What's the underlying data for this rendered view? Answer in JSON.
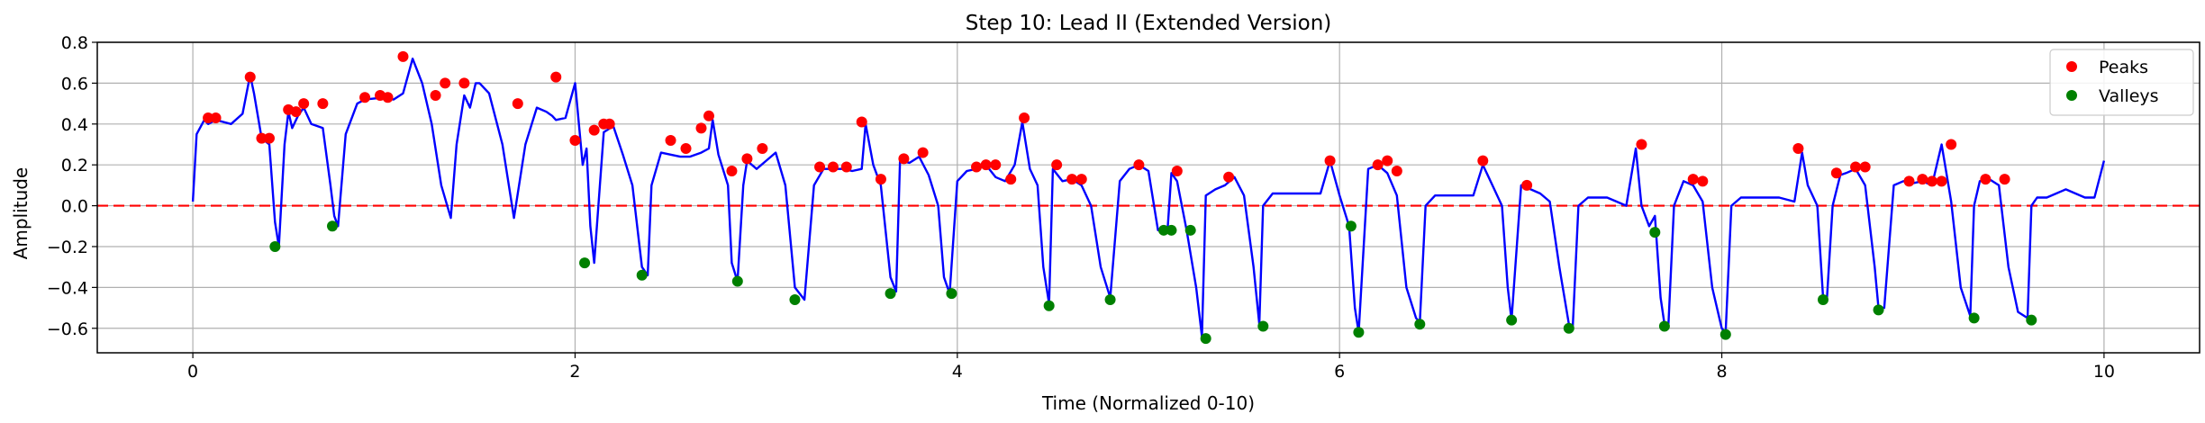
{
  "chart_data": {
    "type": "line",
    "title": "Step 10: Lead II (Extended Version)",
    "xlabel": "Time (Normalized 0-10)",
    "ylabel": "Amplitude",
    "xlim": [
      -0.5,
      10.5
    ],
    "ylim": [
      -0.72,
      0.8
    ],
    "xticks": [
      0,
      2,
      4,
      6,
      8,
      10
    ],
    "xtick_labels": [
      "0",
      "2",
      "4",
      "6",
      "8",
      "10"
    ],
    "yticks": [
      -0.6,
      -0.4,
      -0.2,
      0.0,
      0.2,
      0.4,
      0.6,
      0.8
    ],
    "ytick_labels": [
      "−0.6",
      "−0.4",
      "−0.2",
      "0.0",
      "0.2",
      "0.4",
      "0.6",
      "0.8"
    ],
    "grid": true,
    "legend_position": "top-right",
    "reference_line": {
      "y": 0.0,
      "color": "#ff0000",
      "style": "dashed"
    },
    "signal": {
      "color": "#0000ff",
      "x": [
        0.0,
        0.02,
        0.06,
        0.08,
        0.12,
        0.2,
        0.26,
        0.3,
        0.32,
        0.36,
        0.4,
        0.43,
        0.45,
        0.48,
        0.5,
        0.52,
        0.55,
        0.58,
        0.62,
        0.68,
        0.72,
        0.74,
        0.76,
        0.8,
        0.86,
        0.9,
        1.0,
        1.05,
        1.1,
        1.15,
        1.2,
        1.25,
        1.3,
        1.35,
        1.38,
        1.42,
        1.45,
        1.48,
        1.5,
        1.55,
        1.62,
        1.68,
        1.74,
        1.8,
        1.85,
        1.88,
        1.9,
        1.95,
        2.0,
        2.02,
        2.04,
        2.06,
        2.08,
        2.1,
        2.15,
        2.2,
        2.25,
        2.3,
        2.35,
        2.38,
        2.4,
        2.45,
        2.5,
        2.55,
        2.6,
        2.66,
        2.7,
        2.72,
        2.75,
        2.78,
        2.8,
        2.82,
        2.85,
        2.88,
        2.9,
        2.95,
        3.0,
        3.05,
        3.1,
        3.15,
        3.2,
        3.25,
        3.3,
        3.35,
        3.4,
        3.45,
        3.5,
        3.52,
        3.56,
        3.6,
        3.65,
        3.68,
        3.7,
        3.75,
        3.8,
        3.85,
        3.9,
        3.93,
        3.96,
        4.0,
        4.05,
        4.1,
        4.15,
        4.2,
        4.25,
        4.3,
        4.34,
        4.38,
        4.42,
        4.45,
        4.48,
        4.5,
        4.55,
        4.6,
        4.65,
        4.7,
        4.75,
        4.8,
        4.85,
        4.9,
        4.95,
        5.0,
        5.05,
        5.1,
        5.12,
        5.15,
        5.2,
        5.25,
        5.28,
        5.3,
        5.35,
        5.4,
        5.45,
        5.5,
        5.55,
        5.58,
        5.6,
        5.65,
        5.7,
        5.8,
        5.9,
        5.95,
        6.0,
        6.05,
        6.08,
        6.1,
        6.15,
        6.2,
        6.25,
        6.3,
        6.35,
        6.4,
        6.42,
        6.45,
        6.5,
        6.6,
        6.7,
        6.75,
        6.8,
        6.85,
        6.88,
        6.9,
        6.95,
        7.0,
        7.05,
        7.1,
        7.15,
        7.2,
        7.22,
        7.25,
        7.3,
        7.35,
        7.4,
        7.45,
        7.5,
        7.55,
        7.58,
        7.62,
        7.65,
        7.68,
        7.7,
        7.72,
        7.75,
        7.8,
        7.85,
        7.9,
        7.95,
        8.0,
        8.02,
        8.05,
        8.1,
        8.2,
        8.3,
        8.38,
        8.42,
        8.45,
        8.5,
        8.53,
        8.55,
        8.58,
        8.62,
        8.65,
        8.7,
        8.75,
        8.8,
        8.82,
        8.85,
        8.9,
        8.95,
        9.0,
        9.05,
        9.1,
        9.15,
        9.2,
        9.25,
        9.3,
        9.32,
        9.35,
        9.4,
        9.45,
        9.5,
        9.55,
        9.6,
        9.62,
        9.65,
        9.7,
        9.8,
        9.9,
        9.95,
        10.0
      ],
      "y": [
        0.02,
        0.35,
        0.42,
        0.4,
        0.42,
        0.4,
        0.45,
        0.64,
        0.55,
        0.33,
        0.3,
        -0.08,
        -0.2,
        0.3,
        0.46,
        0.38,
        0.44,
        0.48,
        0.4,
        0.38,
        0.1,
        -0.05,
        -0.1,
        0.35,
        0.5,
        0.52,
        0.53,
        0.52,
        0.55,
        0.72,
        0.6,
        0.4,
        0.1,
        -0.06,
        0.3,
        0.54,
        0.48,
        0.6,
        0.6,
        0.55,
        0.3,
        -0.06,
        0.3,
        0.48,
        0.46,
        0.44,
        0.42,
        0.43,
        0.6,
        0.4,
        0.2,
        0.28,
        -0.1,
        -0.28,
        0.36,
        0.39,
        0.25,
        0.1,
        -0.3,
        -0.34,
        0.1,
        0.26,
        0.25,
        0.24,
        0.24,
        0.26,
        0.28,
        0.42,
        0.25,
        0.16,
        0.1,
        -0.28,
        -0.37,
        0.1,
        0.22,
        0.18,
        0.22,
        0.26,
        0.1,
        -0.4,
        -0.46,
        0.1,
        0.18,
        0.18,
        0.18,
        0.17,
        0.18,
        0.4,
        0.2,
        0.1,
        -0.35,
        -0.42,
        0.22,
        0.21,
        0.24,
        0.15,
        0.0,
        -0.35,
        -0.43,
        0.12,
        0.17,
        0.18,
        0.2,
        0.14,
        0.12,
        0.2,
        0.41,
        0.18,
        0.1,
        -0.3,
        -0.48,
        0.18,
        0.12,
        0.13,
        0.1,
        0.0,
        -0.3,
        -0.45,
        0.12,
        0.18,
        0.2,
        0.17,
        -0.12,
        -0.12,
        0.16,
        0.12,
        -0.12,
        -0.4,
        -0.64,
        0.05,
        0.08,
        0.1,
        0.14,
        0.05,
        -0.3,
        -0.58,
        0.0,
        0.06,
        0.06,
        0.06,
        0.06,
        0.22,
        0.05,
        -0.1,
        -0.5,
        -0.62,
        0.18,
        0.2,
        0.16,
        0.05,
        -0.4,
        -0.55,
        -0.57,
        0.0,
        0.05,
        0.05,
        0.05,
        0.2,
        0.1,
        0.0,
        -0.4,
        -0.56,
        0.1,
        0.08,
        0.06,
        0.02,
        -0.3,
        -0.58,
        -0.6,
        0.0,
        0.04,
        0.04,
        0.04,
        0.02,
        0.0,
        0.28,
        0.0,
        -0.1,
        -0.05,
        -0.45,
        -0.58,
        -0.6,
        0.0,
        0.12,
        0.1,
        0.02,
        -0.4,
        -0.6,
        -0.62,
        0.0,
        0.04,
        0.04,
        0.04,
        0.02,
        0.26,
        0.1,
        0.0,
        -0.45,
        -0.46,
        0.0,
        0.15,
        0.16,
        0.18,
        0.1,
        -0.3,
        -0.5,
        -0.5,
        0.1,
        0.12,
        0.11,
        0.12,
        0.1,
        0.3,
        0.02,
        -0.4,
        -0.54,
        0.0,
        0.12,
        0.13,
        0.1,
        -0.3,
        -0.52,
        -0.55,
        0.0,
        0.04,
        0.04,
        0.08,
        0.04,
        0.04,
        0.22
      ]
    },
    "series": [
      {
        "name": "Peaks",
        "color": "#ff0000",
        "x": [
          0.08,
          0.12,
          0.3,
          0.36,
          0.4,
          0.5,
          0.54,
          0.58,
          0.68,
          0.9,
          0.98,
          1.02,
          1.1,
          1.27,
          1.32,
          1.42,
          1.7,
          1.9,
          2.0,
          2.1,
          2.15,
          2.18,
          2.5,
          2.58,
          2.66,
          2.7,
          2.82,
          2.9,
          2.98,
          3.28,
          3.35,
          3.42,
          3.5,
          3.6,
          3.72,
          3.82,
          4.1,
          4.15,
          4.2,
          4.28,
          4.35,
          4.52,
          4.6,
          4.65,
          4.95,
          5.15,
          5.42,
          5.95,
          6.2,
          6.25,
          6.3,
          6.75,
          6.98,
          7.58,
          7.85,
          7.9,
          8.4,
          8.6,
          8.7,
          8.75,
          8.98,
          9.05,
          9.1,
          9.15,
          9.2,
          9.38,
          9.48
        ],
        "y": [
          0.43,
          0.43,
          0.63,
          0.33,
          0.33,
          0.47,
          0.46,
          0.5,
          0.5,
          0.53,
          0.54,
          0.53,
          0.73,
          0.54,
          0.6,
          0.6,
          0.5,
          0.63,
          0.32,
          0.37,
          0.4,
          0.4,
          0.32,
          0.28,
          0.38,
          0.44,
          0.17,
          0.23,
          0.28,
          0.19,
          0.19,
          0.19,
          0.41,
          0.13,
          0.23,
          0.26,
          0.19,
          0.2,
          0.2,
          0.13,
          0.43,
          0.2,
          0.13,
          0.13,
          0.2,
          0.17,
          0.14,
          0.22,
          0.2,
          0.22,
          0.17,
          0.22,
          0.1,
          0.3,
          0.13,
          0.12,
          0.28,
          0.16,
          0.19,
          0.19,
          0.12,
          0.13,
          0.12,
          0.12,
          0.3,
          0.13,
          0.13
        ]
      },
      {
        "name": "Valleys",
        "color": "#008000",
        "x": [
          0.43,
          0.73,
          2.05,
          2.35,
          2.85,
          3.15,
          3.65,
          3.97,
          4.48,
          4.8,
          5.08,
          5.12,
          5.22,
          5.3,
          5.6,
          6.06,
          6.1,
          6.42,
          6.9,
          7.2,
          7.65,
          7.7,
          8.02,
          8.53,
          8.82,
          9.32,
          9.62
        ],
        "y": [
          -0.2,
          -0.1,
          -0.28,
          -0.34,
          -0.37,
          -0.46,
          -0.43,
          -0.43,
          -0.49,
          -0.46,
          -0.12,
          -0.12,
          -0.12,
          -0.65,
          -0.59,
          -0.1,
          -0.62,
          -0.58,
          -0.56,
          -0.6,
          -0.13,
          -0.59,
          -0.63,
          -0.46,
          -0.51,
          -0.55,
          -0.56
        ]
      }
    ]
  }
}
